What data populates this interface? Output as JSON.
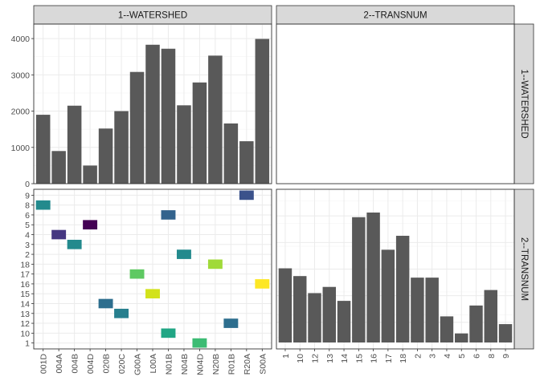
{
  "chart_data": {
    "type": "facet-matrix",
    "facets": [
      "1--WATERSHED",
      "2--TRANSNUM"
    ],
    "panels": [
      {
        "type": "bar",
        "row": "1--WATERSHED",
        "col": "1--WATERSHED",
        "categories": [
          "001D",
          "004A",
          "004B",
          "004D",
          "020B",
          "020C",
          "G00A",
          "L00A",
          "N01B",
          "N04B",
          "N04D",
          "N20B",
          "R01B",
          "R20A",
          "S00A"
        ],
        "values": [
          1900,
          900,
          2150,
          500,
          1520,
          2000,
          3080,
          3830,
          3720,
          2160,
          2790,
          3530,
          1660,
          1170,
          3990
        ],
        "yticks": [
          0,
          1000,
          2000,
          3000,
          4000
        ],
        "ylim": [
          0,
          4400
        ],
        "color": "#595959"
      },
      {
        "type": "empty",
        "row": "1--WATERSHED",
        "col": "2--TRANSNUM"
      },
      {
        "type": "heatmap",
        "row": "2--TRANSNUM",
        "col": "1--WATERSHED",
        "x_categories": [
          "001D",
          "004A",
          "004B",
          "004D",
          "020B",
          "020C",
          "G00A",
          "L00A",
          "N01B",
          "N04B",
          "N04D",
          "N20B",
          "R01B",
          "R20A",
          "S00A"
        ],
        "y_categories": [
          "1",
          "10",
          "12",
          "13",
          "14",
          "15",
          "16",
          "17",
          "18",
          "2",
          "3",
          "4",
          "5",
          "6",
          "8",
          "9"
        ],
        "cells": [
          {
            "x": "001D",
            "y": "8",
            "color": "#238a8d"
          },
          {
            "x": "004A",
            "y": "4",
            "color": "#453781"
          },
          {
            "x": "004B",
            "y": "3",
            "color": "#238a8d"
          },
          {
            "x": "004D",
            "y": "5",
            "color": "#440154"
          },
          {
            "x": "020B",
            "y": "14",
            "color": "#2d6e8e"
          },
          {
            "x": "020C",
            "y": "13",
            "color": "#277f8e"
          },
          {
            "x": "G00A",
            "y": "17",
            "color": "#5ec962"
          },
          {
            "x": "L00A",
            "y": "15",
            "color": "#d2e21b"
          },
          {
            "x": "N01B",
            "y": "6",
            "color": "#33638d"
          },
          {
            "x": "N01B",
            "y": "10",
            "color": "#21a685"
          },
          {
            "x": "N04B",
            "y": "2",
            "color": "#238a8d"
          },
          {
            "x": "N04D",
            "y": "1",
            "color": "#3dbc74"
          },
          {
            "x": "N20B",
            "y": "18",
            "color": "#a0da39"
          },
          {
            "x": "R01B",
            "y": "12",
            "color": "#2d6e8e"
          },
          {
            "x": "R20A",
            "y": "9",
            "color": "#3b528b"
          },
          {
            "x": "S00A",
            "y": "16",
            "color": "#fde725"
          }
        ]
      },
      {
        "type": "bar",
        "row": "2--TRANSNUM",
        "col": "2--TRANSNUM",
        "categories": [
          "1",
          "10",
          "12",
          "13",
          "14",
          "15",
          "16",
          "17",
          "18",
          "2",
          "3",
          "4",
          "5",
          "6",
          "8",
          "9"
        ],
        "values": [
          3.4,
          2.9,
          1.8,
          2.2,
          1.3,
          6.7,
          7.0,
          4.6,
          5.5,
          2.8,
          2.8,
          0.3,
          -0.8,
          1.0,
          2.0,
          -0.2
        ],
        "ylim": [
          -1.8,
          8.5
        ],
        "color": "#595959"
      }
    ]
  }
}
